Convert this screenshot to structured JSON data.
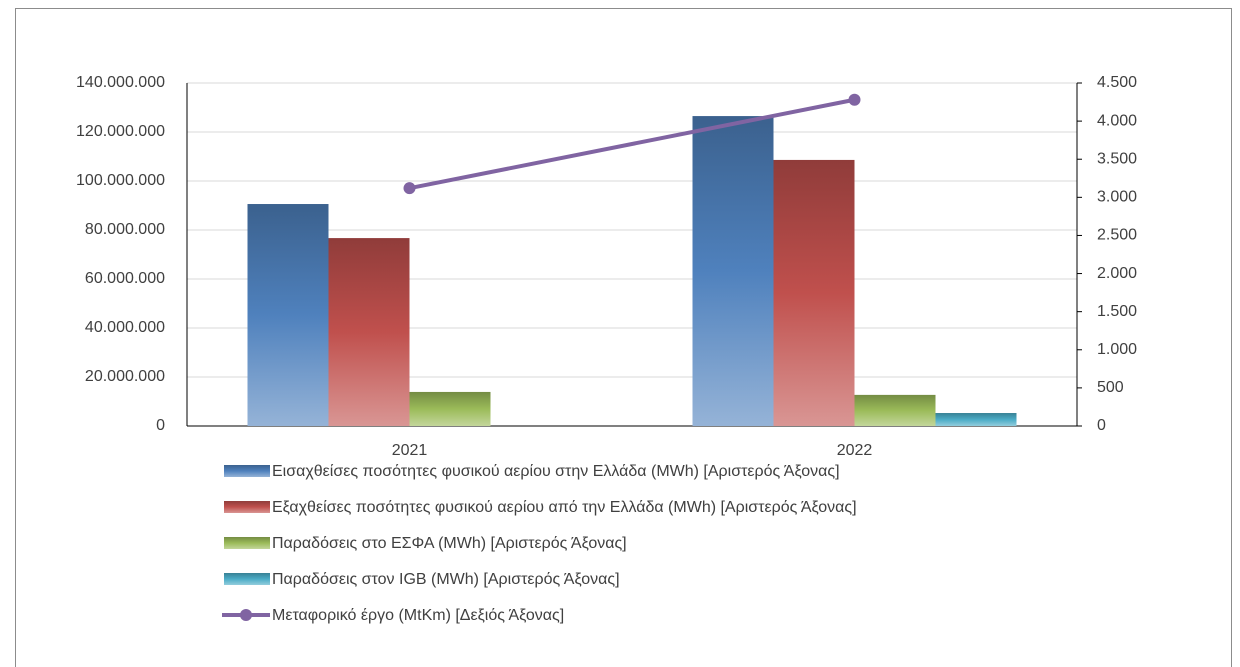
{
  "chart_data": {
    "type": "bar",
    "categories": [
      "2021",
      "2022"
    ],
    "series": [
      {
        "name": "Εισαχθείσες ποσότητες φυσικού αερίου στην Ελλάδα (MWh) [Αριστερός Άξονας]",
        "color": "#4f81bd",
        "values": [
          90600000,
          126500000
        ]
      },
      {
        "name": "Εξαχθείσες ποσότητες φυσικού αερίου από την Ελλάδα (MWh)  [Αριστερός Άξονας]",
        "color": "#c0504d",
        "values": [
          76700000,
          108600000
        ]
      },
      {
        "name": "Παραδόσεις στο ΕΣΦΑ (MWh) [Αριστερός Άξονας]",
        "color": "#9bbb59",
        "values": [
          13900000,
          12700000
        ]
      },
      {
        "name": "Παραδόσεις στον IGB (MWh) [Αριστερός Άξονας]",
        "color": "#4bacc6",
        "values": [
          null,
          5300000
        ]
      },
      {
        "name": "Μεταφορικό έργο (MtKm) [Δεξιός Άξονας]",
        "color": "#8064a2",
        "type": "line",
        "axis": "y2",
        "values": [
          3120,
          4280
        ]
      }
    ],
    "ylim": [
      0,
      140000000
    ],
    "yticks": [
      0,
      {
        "value": 20000000,
        "label": "20.000.000"
      },
      {
        "value": 40000000,
        "label": "40.000.000"
      },
      {
        "value": 60000000,
        "label": "60.000.000"
      },
      {
        "value": 80000000,
        "label": "80.000.000"
      },
      {
        "value": 100000000,
        "label": "100.000.000"
      },
      {
        "value": 120000000,
        "label": "120.000.000"
      },
      {
        "value": 140000000,
        "label": "140.000.000"
      }
    ],
    "y2lim": [
      0,
      4500
    ],
    "y2ticks": [
      0,
      500,
      {
        "value": 1000,
        "label": "1.000"
      },
      {
        "value": 1500,
        "label": "1.500"
      },
      {
        "value": 2000,
        "label": "2.000"
      },
      {
        "value": 2500,
        "label": "2.500"
      },
      {
        "value": 3000,
        "label": "3.000"
      },
      {
        "value": 3500,
        "label": "3.500"
      },
      {
        "value": 4000,
        "label": "4.000"
      },
      {
        "value": 4500,
        "label": "4.500"
      }
    ],
    "grid": true,
    "legend": "bottom"
  }
}
